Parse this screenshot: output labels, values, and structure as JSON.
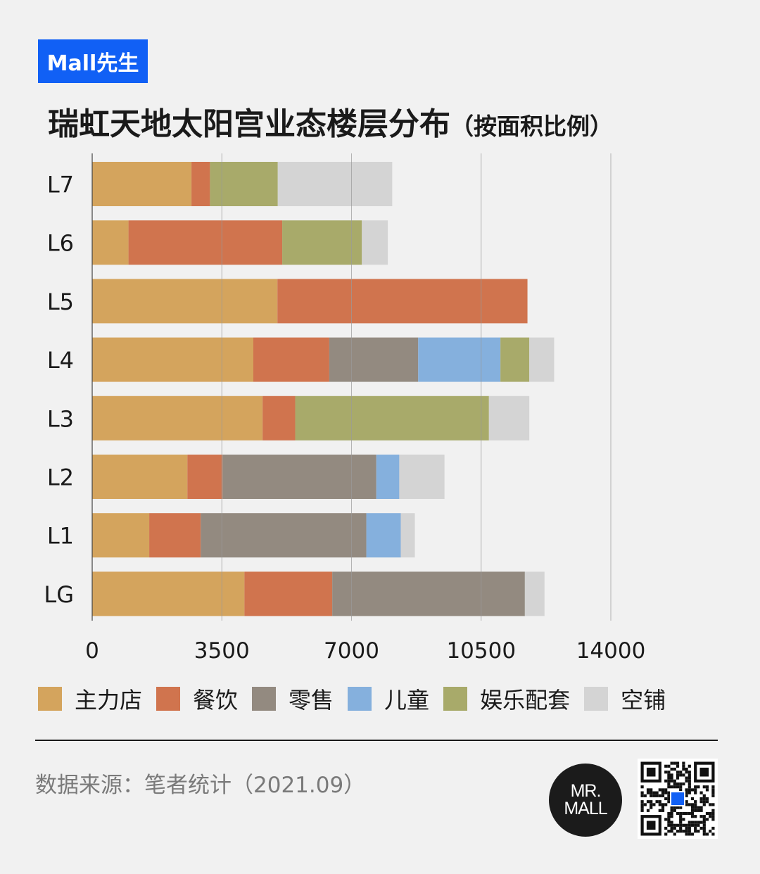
{
  "brand": {
    "tag": "Mall先生"
  },
  "title": {
    "main": "瑞虹天地太阳宫业态楼层分布",
    "sub": "（按面积比例）"
  },
  "chart_data": {
    "type": "bar",
    "orientation": "horizontal",
    "stacked": true,
    "categories": [
      "L7",
      "L6",
      "L5",
      "L4",
      "L3",
      "L2",
      "L1",
      "LG"
    ],
    "x_ticks": [
      "0",
      "3500",
      "7000",
      "10500",
      "14000"
    ],
    "xlim": [
      0,
      14000
    ],
    "grid": true,
    "legend_position": "bottom",
    "series": [
      {
        "name": "主力店",
        "color": "#d4a45d",
        "values": [
          2680,
          980,
          5000,
          4350,
          4600,
          2570,
          1540,
          4110
        ]
      },
      {
        "name": "餐饮",
        "color": "#d0744e",
        "values": [
          500,
          4150,
          6750,
          2050,
          880,
          950,
          1390,
          2370
        ]
      },
      {
        "name": "零售",
        "color": "#938a80",
        "values": [
          0,
          0,
          0,
          2400,
          0,
          4150,
          4470,
          5200
        ]
      },
      {
        "name": "儿童",
        "color": "#85b0dd",
        "values": [
          0,
          0,
          0,
          2220,
          0,
          620,
          930,
          0
        ]
      },
      {
        "name": "娱乐配套",
        "color": "#a8aa6a",
        "values": [
          1830,
          2150,
          0,
          780,
          5230,
          0,
          0,
          0
        ]
      },
      {
        "name": "空铺",
        "color": "#d4d4d4",
        "values": [
          3090,
          700,
          0,
          670,
          1090,
          1220,
          380,
          530
        ]
      }
    ]
  },
  "legend": {
    "items": [
      {
        "label": "主力店",
        "color": "#d4a45d"
      },
      {
        "label": "餐饮",
        "color": "#d0744e"
      },
      {
        "label": "零售",
        "color": "#938a80"
      },
      {
        "label": "儿童",
        "color": "#85b0dd"
      },
      {
        "label": "娱乐配套",
        "color": "#a8aa6a"
      },
      {
        "label": "空铺",
        "color": "#d4d4d4"
      }
    ]
  },
  "footer": {
    "source": "数据来源：笔者统计（2021.09）",
    "logo_line1": "MR.",
    "logo_line2": "MALL"
  }
}
